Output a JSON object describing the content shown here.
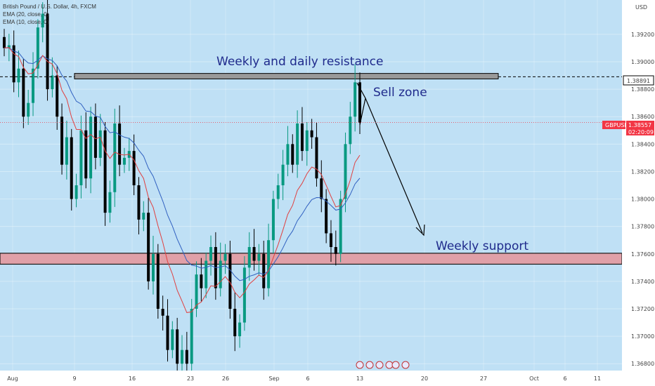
{
  "header": {
    "symbol_line": "British Pound / U.S. Dollar, 4h, FXCM",
    "ema20": "EMA (20, close, 0)",
    "ema10": "EMA (10, close, 0)"
  },
  "price_axis": {
    "currency": "USD",
    "ticks": [
      "1.39200",
      "1.39000",
      "1.38800",
      "1.38600",
      "1.38400",
      "1.38200",
      "1.38000",
      "1.37800",
      "1.37600",
      "1.37400",
      "1.37200",
      "1.37000",
      "1.36800"
    ],
    "resistance_label": "1.38891",
    "price_label": "GBPUSD",
    "price_value": "1.38557",
    "countdown": "02:20:09"
  },
  "time_axis": {
    "ticks": [
      "Aug",
      "9",
      "16",
      "23",
      "26",
      "Sep",
      "6",
      "13",
      "20",
      "27",
      "Oct",
      "6",
      "11"
    ]
  },
  "annotations": {
    "resistance": "Weekly and daily resistance",
    "sell": "Sell zone",
    "support": "Weekly support"
  },
  "colors": {
    "background": "#bfe0f5",
    "bull_candle": "#089981",
    "bear_candle": "#000000",
    "ema10": "#e04040",
    "ema20": "#3060c0",
    "resistance_zone": "#999999",
    "support_zone": "#e0a0a8",
    "price_badge": "#f23645"
  },
  "chart_data": {
    "type": "candlestick",
    "symbol": "GBPUSD",
    "timeframe": "4h",
    "y_axis": {
      "min": 1.3675,
      "max": 1.3945
    },
    "resistance": 1.38891,
    "current_price": 1.38557,
    "resistance_zone": [
      1.38875,
      1.38915
    ],
    "support_zone": [
      1.37525,
      1.37605
    ],
    "series_close": [
      1.391,
      1.3912,
      1.3885,
      1.3895,
      1.386,
      1.387,
      1.3895,
      1.3925,
      1.3935,
      1.388,
      1.389,
      1.386,
      1.3825,
      1.3845,
      1.38,
      1.381,
      1.385,
      1.3815,
      1.386,
      1.383,
      1.385,
      1.379,
      1.3805,
      1.3855,
      1.3825,
      1.383,
      1.3835,
      1.381,
      1.3785,
      1.379,
      1.374,
      1.376,
      1.372,
      1.3715,
      1.369,
      1.3705,
      1.368,
      1.369,
      1.368,
      1.372,
      1.3745,
      1.3735,
      1.3755,
      1.3765,
      1.3735,
      1.3755,
      1.376,
      1.372,
      1.37,
      1.371,
      1.375,
      1.3765,
      1.3755,
      1.376,
      1.3735,
      1.377,
      1.38,
      1.381,
      1.3825,
      1.384,
      1.3825,
      1.3855,
      1.3835,
      1.385,
      1.3845,
      1.3815,
      1.38,
      1.3775,
      1.3765,
      1.376,
      1.38,
      1.384,
      1.386,
      1.3885,
      1.38557
    ]
  }
}
